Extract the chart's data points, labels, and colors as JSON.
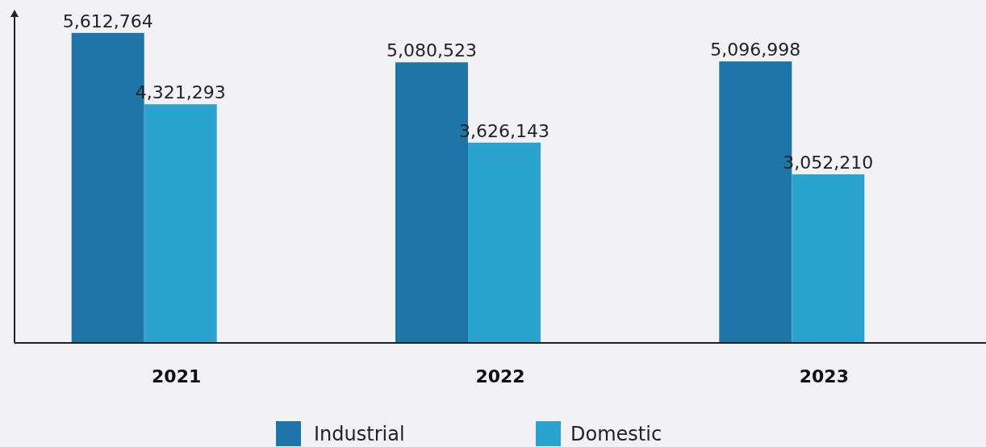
{
  "chart_data": {
    "type": "bar",
    "categories": [
      "2021",
      "2022",
      "2023"
    ],
    "series": [
      {
        "name": "Industrial",
        "color": "#1f75a8",
        "values": [
          5612764,
          5080523,
          5096998
        ],
        "value_labels": [
          "5,612,764",
          "5,080,523",
          "5,096,998"
        ]
      },
      {
        "name": "Domestic",
        "color": "#2aa3cf",
        "values": [
          4321293,
          3626143,
          3052210
        ],
        "value_labels": [
          "4,321,293",
          "3,626,143",
          "3,052,210"
        ]
      }
    ],
    "legend": "bottom"
  }
}
